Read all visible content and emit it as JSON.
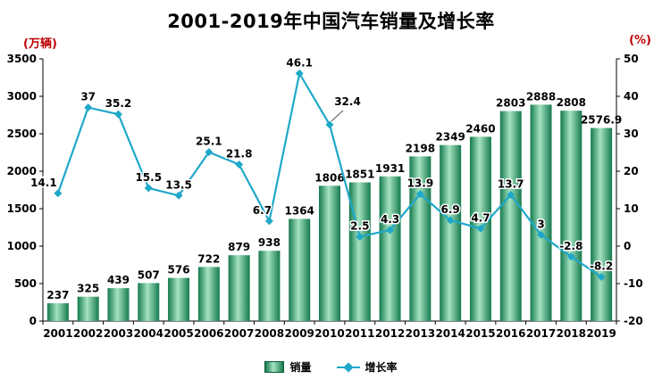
{
  "title": "2001-2019年中国汽车销量及增长率",
  "left_axis_unit": "(万辆)",
  "right_axis_unit": "(%)",
  "legend": {
    "sales_label": "销量",
    "growth_label": "增长率"
  },
  "colors": {
    "bar_dark": "#157a4e",
    "bar_mid": "#a5e3c0",
    "bar_border": "#0c5c39",
    "line": "#1fa8c9",
    "unit_label": "#c00000",
    "axis": "#000000"
  },
  "chart_data": {
    "type": "bar",
    "subtype": "bar-line-combo",
    "title": "2001-2019年中国汽车销量及增长率",
    "categories": [
      "2001",
      "2002",
      "2003",
      "2004",
      "2005",
      "2006",
      "2007",
      "2008",
      "2009",
      "2010",
      "2011",
      "2012",
      "2013",
      "2014",
      "2015",
      "2016",
      "2017",
      "2018",
      "2019"
    ],
    "series": [
      {
        "name": "销量",
        "type": "bar",
        "axis": "left",
        "unit": "万辆",
        "values": [
          237,
          325,
          439,
          507,
          576,
          722,
          879,
          938,
          1364,
          1806,
          1851,
          1931,
          2198,
          2349,
          2460,
          2803,
          2888,
          2808,
          2576.9
        ]
      },
      {
        "name": "增长率",
        "type": "line",
        "axis": "right",
        "unit": "%",
        "values": [
          14.1,
          37,
          35.2,
          15.5,
          13.5,
          25.1,
          21.8,
          6.7,
          46.1,
          32.4,
          2.5,
          4.3,
          13.9,
          6.9,
          4.7,
          13.7,
          3,
          -2.8,
          -8.2
        ]
      }
    ],
    "left_axis": {
      "label": "(万辆)",
      "min": 0,
      "max": 3500,
      "step": 500
    },
    "right_axis": {
      "label": "(%)",
      "min": -20,
      "max": 50,
      "step": 10
    },
    "legend_position": "bottom",
    "grid": false,
    "data_labels": true
  }
}
